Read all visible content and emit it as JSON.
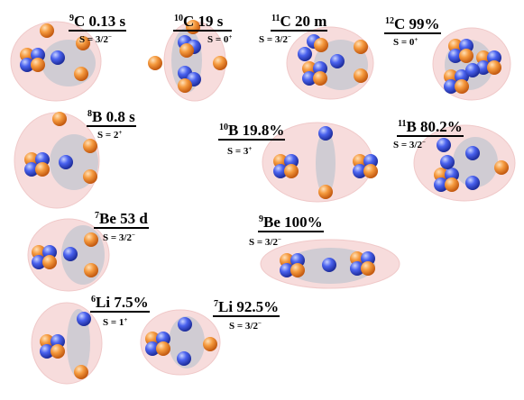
{
  "figure": {
    "nuclei": [
      {
        "id": "C9",
        "mass": "9",
        "symbol": "C",
        "value": "0.13 s",
        "spin_prefix": "S = 3/2",
        "spin_parity": "−"
      },
      {
        "id": "C10",
        "mass": "10",
        "symbol": "C",
        "value": "19 s",
        "spin_prefix": "S = 0",
        "spin_parity": "+"
      },
      {
        "id": "C11",
        "mass": "11",
        "symbol": "C",
        "value": "20 m",
        "spin_prefix": "S = 3/2",
        "spin_parity": "−"
      },
      {
        "id": "C12",
        "mass": "12",
        "symbol": "C",
        "value": "99%",
        "spin_prefix": "S = 0",
        "spin_parity": "+"
      },
      {
        "id": "B8",
        "mass": "8",
        "symbol": "B",
        "value": "0.8 s",
        "spin_prefix": "S = 2",
        "spin_parity": "+"
      },
      {
        "id": "B10",
        "mass": "10",
        "symbol": "B",
        "value": "19.8%",
        "spin_prefix": "S = 3",
        "spin_parity": "+"
      },
      {
        "id": "B11",
        "mass": "11",
        "symbol": "B",
        "value": "80.2%",
        "spin_prefix": "S = 3/2",
        "spin_parity": "−"
      },
      {
        "id": "Be7",
        "mass": "7",
        "symbol": "Be",
        "value": "53 d",
        "spin_prefix": "S = 3/2",
        "spin_parity": "−"
      },
      {
        "id": "Be9",
        "mass": "9",
        "symbol": "Be",
        "value": "100%",
        "spin_prefix": "S = 3/2",
        "spin_parity": "−"
      },
      {
        "id": "Li6",
        "mass": "6",
        "symbol": "Li",
        "value": "7.5%",
        "spin_prefix": "S = 1",
        "spin_parity": "+"
      },
      {
        "id": "Li7",
        "mass": "7",
        "symbol": "Li",
        "value": "92.5%",
        "spin_prefix": "S = 3/2",
        "spin_parity": "−"
      }
    ],
    "colors": {
      "proton": "#f08a2c",
      "neutron": "#3a55e0",
      "nucleus_envelope": "#f7dcdc",
      "cluster_core": "#c9c9d1"
    }
  }
}
